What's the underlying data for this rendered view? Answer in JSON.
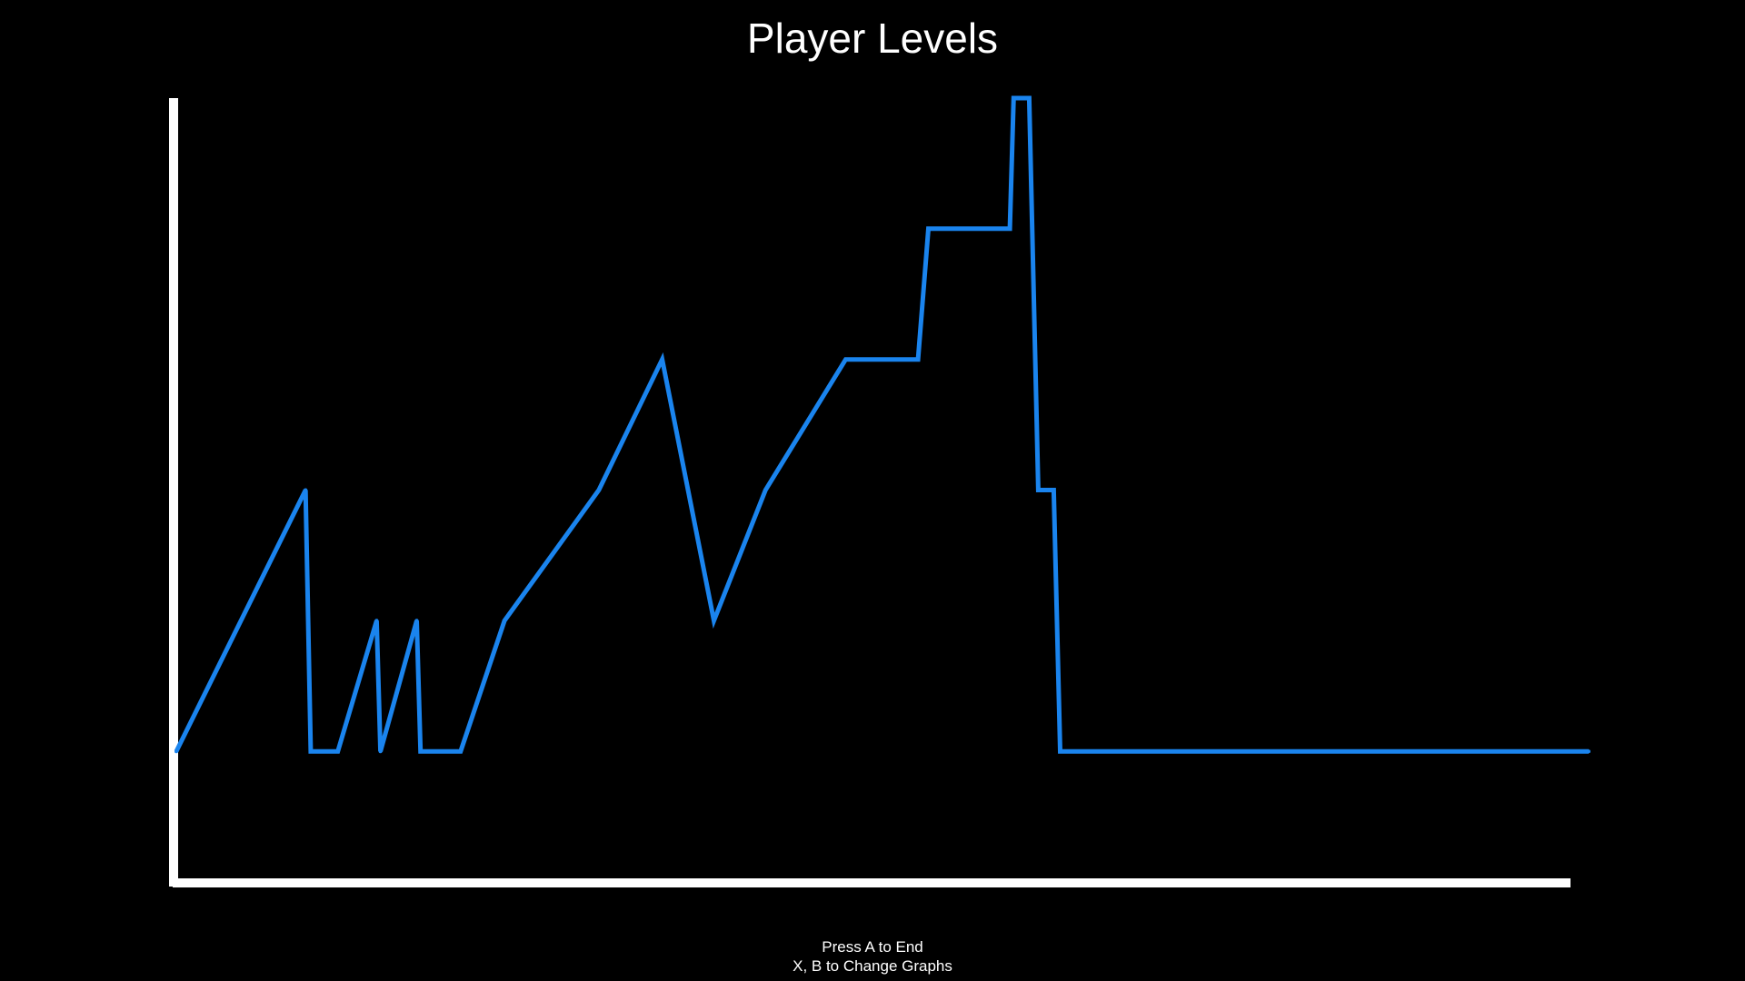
{
  "screen": {
    "background_color": "#000000",
    "text_color": "#ffffff"
  },
  "footer": {
    "line1": "Press A to End",
    "line2": "X, B to Change Graphs"
  },
  "chart_data": {
    "type": "line",
    "title": "Player Levels",
    "xlabel": "",
    "ylabel": "",
    "grid": false,
    "axis_color": "#ffffff",
    "line_color": "#1a84ee",
    "xlim": [
      0,
      110
    ],
    "ylim": [
      -1,
      5
    ],
    "series": [
      {
        "points": [
          [
            0,
            0
          ],
          [
            5,
            1
          ],
          [
            10,
            2
          ],
          [
            10.4,
            0
          ],
          [
            12.5,
            0
          ],
          [
            15.5,
            1
          ],
          [
            15.8,
            0
          ],
          [
            18.6,
            1
          ],
          [
            18.9,
            0
          ],
          [
            22,
            0
          ],
          [
            25.4,
            1
          ],
          [
            32.7,
            2
          ],
          [
            37.6,
            3
          ],
          [
            41.6,
            1
          ],
          [
            45.6,
            2
          ],
          [
            51.8,
            3
          ],
          [
            57.4,
            3
          ],
          [
            58.2,
            4
          ],
          [
            64.5,
            4
          ],
          [
            64.8,
            5
          ],
          [
            66,
            5
          ],
          [
            66.7,
            2
          ],
          [
            67.9,
            2
          ],
          [
            68.4,
            0
          ],
          [
            79.3,
            0
          ],
          [
            109.3,
            0
          ]
        ]
      }
    ]
  }
}
